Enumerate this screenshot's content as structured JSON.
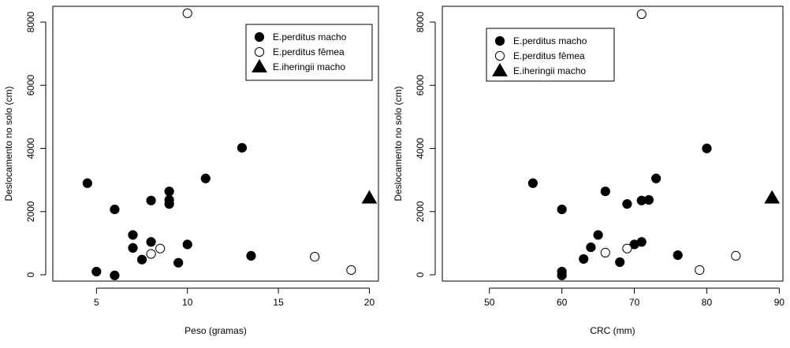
{
  "chart_data": [
    {
      "type": "scatter",
      "xlabel": "Peso (gramas)",
      "ylabel": "Deslocamento no solo (cm)",
      "xlim": [
        2.6,
        20.5
      ],
      "ylim": [
        -200,
        8500
      ],
      "xticks": [
        5,
        10,
        15,
        20
      ],
      "yticks": [
        0,
        2000,
        4000,
        6000,
        8000
      ],
      "legend_position": "top-right",
      "series": [
        {
          "name": "E.perditus macho",
          "marker": "filled-circle",
          "points": [
            [
              4.5,
              2900
            ],
            [
              5,
              100
            ],
            [
              6,
              2070
            ],
            [
              6,
              -20
            ],
            [
              7,
              1260
            ],
            [
              7,
              850
            ],
            [
              7.5,
              480
            ],
            [
              8,
              2350
            ],
            [
              8,
              1040
            ],
            [
              9,
              2640
            ],
            [
              9,
              2370
            ],
            [
              9,
              2240
            ],
            [
              9.5,
              380
            ],
            [
              10,
              960
            ],
            [
              11,
              3050
            ],
            [
              13,
              4020
            ],
            [
              13.5,
              600
            ]
          ]
        },
        {
          "name": "E.perditus fêmea",
          "marker": "open-circle",
          "points": [
            [
              8,
              660
            ],
            [
              8.5,
              830
            ],
            [
              10,
              8280
            ],
            [
              17,
              570
            ],
            [
              19,
              150
            ]
          ]
        },
        {
          "name": "E.iheringii macho",
          "marker": "filled-triangle",
          "points": [
            [
              20,
              2430
            ]
          ]
        }
      ]
    },
    {
      "type": "scatter",
      "xlabel": "CRC (mm)",
      "ylabel": "Deslocamento no solo (cm)",
      "xlim": [
        43.5,
        90.5
      ],
      "ylim": [
        -200,
        8500
      ],
      "xticks": [
        50,
        60,
        70,
        80,
        90
      ],
      "yticks": [
        0,
        2000,
        4000,
        6000,
        8000
      ],
      "legend_position": "top-left",
      "series": [
        {
          "name": "E.perditus macho",
          "marker": "filled-circle",
          "points": [
            [
              56,
              2900
            ],
            [
              60,
              2070
            ],
            [
              60,
              100
            ],
            [
              60,
              -20
            ],
            [
              63,
              500
            ],
            [
              64,
              870
            ],
            [
              65,
              1260
            ],
            [
              66,
              2640
            ],
            [
              68,
              400
            ],
            [
              69,
              2240
            ],
            [
              70,
              960
            ],
            [
              71,
              2350
            ],
            [
              71,
              1040
            ],
            [
              72,
              2370
            ],
            [
              73,
              3050
            ],
            [
              76,
              620
            ],
            [
              80,
              4000
            ]
          ]
        },
        {
          "name": "E.perditus fêmea",
          "marker": "open-circle",
          "points": [
            [
              66,
              700
            ],
            [
              69,
              830
            ],
            [
              71,
              8250
            ],
            [
              79,
              150
            ],
            [
              84,
              600
            ]
          ]
        },
        {
          "name": "E.iheringii macho",
          "marker": "filled-triangle",
          "points": [
            [
              89,
              2430
            ]
          ]
        }
      ]
    }
  ]
}
